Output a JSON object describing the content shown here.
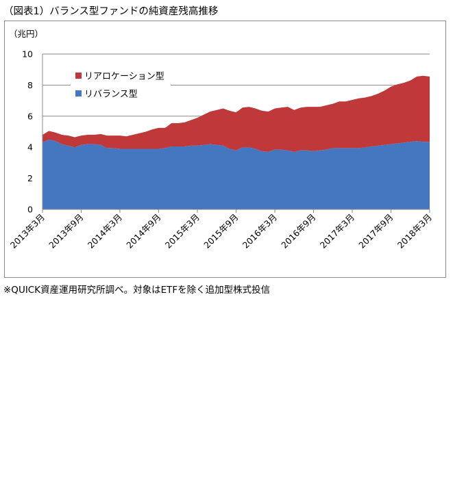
{
  "title": "（図表1）バランス型ファンドの純資産残高推移",
  "note": "※QUICK資産運用研究所調べ。対象はETFを除く追加型株式投信",
  "chart_data": {
    "type": "area",
    "stacked": true,
    "ylabel": "（兆円）",
    "xlabel": "",
    "ylim": [
      0,
      10
    ],
    "yticks": [
      "0",
      "2",
      "4",
      "6",
      "8",
      "10"
    ],
    "grid": true,
    "legend_position": "top-left",
    "x_tick_labels": [
      "2013年3月",
      "2013年9月",
      "2014年3月",
      "2014年9月",
      "2015年3月",
      "2015年9月",
      "2016年3月",
      "2016年9月",
      "2017年3月",
      "2017年9月",
      "2018年3月"
    ],
    "x_start": "2013年3月",
    "series": [
      {
        "name": "リバランス型",
        "color": "#4477c0",
        "values": [
          4.3,
          4.5,
          4.4,
          4.2,
          4.1,
          4.0,
          4.15,
          4.2,
          4.2,
          4.15,
          3.95,
          3.95,
          3.9,
          3.9,
          3.9,
          3.9,
          3.9,
          3.9,
          3.9,
          3.95,
          4.05,
          4.05,
          4.05,
          4.1,
          4.1,
          4.15,
          4.2,
          4.15,
          4.1,
          3.9,
          3.8,
          4.0,
          4.0,
          3.9,
          3.75,
          3.7,
          3.85,
          3.85,
          3.8,
          3.7,
          3.8,
          3.8,
          3.75,
          3.8,
          3.85,
          3.95,
          3.95,
          3.95,
          3.95,
          3.95,
          4.0,
          4.05,
          4.1,
          4.15,
          4.2,
          4.25,
          4.3,
          4.35,
          4.4,
          4.35,
          4.35
        ]
      },
      {
        "name": "リアロケーション型",
        "color": "#c0393a",
        "values": [
          0.5,
          0.55,
          0.55,
          0.6,
          0.65,
          0.65,
          0.6,
          0.6,
          0.6,
          0.7,
          0.8,
          0.8,
          0.85,
          0.8,
          0.9,
          1.0,
          1.1,
          1.25,
          1.35,
          1.3,
          1.5,
          1.5,
          1.55,
          1.65,
          1.8,
          1.95,
          2.1,
          2.25,
          2.4,
          2.45,
          2.45,
          2.55,
          2.6,
          2.6,
          2.6,
          2.6,
          2.65,
          2.7,
          2.8,
          2.7,
          2.75,
          2.8,
          2.85,
          2.8,
          2.85,
          2.85,
          3.0,
          3.0,
          3.1,
          3.2,
          3.2,
          3.25,
          3.35,
          3.5,
          3.7,
          3.8,
          3.85,
          3.95,
          4.15,
          4.25,
          4.2
        ]
      }
    ]
  }
}
